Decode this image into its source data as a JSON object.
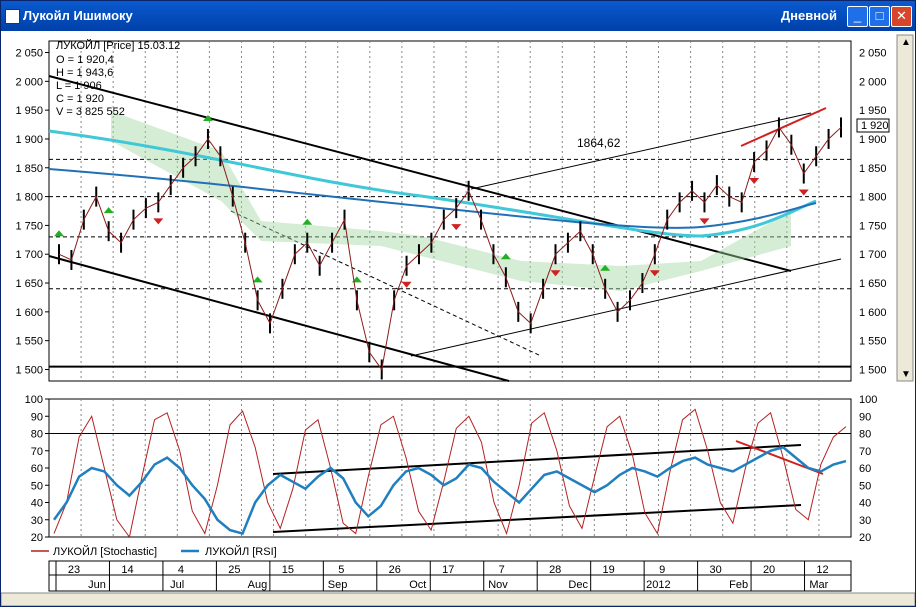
{
  "window": {
    "title": "Лукойл Ишимоку",
    "period": "Дневной"
  },
  "buttons": {
    "minimize": "_",
    "maximize": "□",
    "close": "✕"
  },
  "info": {
    "header": "ЛУКОЙЛ [Price] 15.03.12",
    "lines": [
      "O = 1 920,4",
      "H = 1 943,6",
      "L = 1 906",
      "C = 1 920",
      "V = 3 825 552"
    ]
  },
  "price_label": "1 920",
  "annotation": "1864,62",
  "legend": {
    "stochastic": "ЛУКОЙЛ [Stochastic]",
    "rsi": "ЛУКОЙЛ [RSI]"
  },
  "colors": {
    "stochastic": "#b22222",
    "rsi": "#1f7fbf",
    "annotation": "#d03030"
  },
  "chart_data": [
    {
      "type": "line",
      "title": "ЛУКОЙЛ [Price]",
      "ylim": [
        1480,
        2070
      ],
      "yticks": [
        "2 050",
        "2 000",
        "1 950",
        "1 900",
        "1 850",
        "1 800",
        "1 750",
        "1 700",
        "1 650",
        "1 600",
        "1 550",
        "1 500"
      ],
      "ytick_values": [
        2050,
        2000,
        1950,
        1900,
        1850,
        1800,
        1750,
        1700,
        1650,
        1600,
        1550,
        1500
      ],
      "hlines": [
        1864.62,
        1800,
        1730,
        1640,
        1505
      ],
      "grid": true,
      "series": [
        {
          "name": "ЛУКОЙЛ [Price]",
          "values": [
            1700,
            1690,
            1760,
            1800,
            1740,
            1720,
            1760,
            1780,
            1790,
            1820,
            1850,
            1870,
            1900,
            1870,
            1800,
            1720,
            1620,
            1580,
            1640,
            1700,
            1720,
            1680,
            1720,
            1760,
            1620,
            1530,
            1500,
            1620,
            1680,
            1700,
            1720,
            1760,
            1780,
            1810,
            1760,
            1700,
            1660,
            1600,
            1580,
            1640,
            1700,
            1720,
            1740,
            1700,
            1640,
            1600,
            1620,
            1650,
            1700,
            1760,
            1790,
            1810,
            1790,
            1820,
            1800,
            1790,
            1860,
            1880,
            1920,
            1890,
            1840,
            1870,
            1900,
            1920
          ]
        }
      ]
    },
    {
      "type": "line",
      "ylim": [
        20,
        100
      ],
      "yticks": [
        "100",
        "90",
        "80",
        "70",
        "60",
        "50",
        "40",
        "30",
        "20"
      ],
      "ytick_values": [
        100,
        90,
        80,
        70,
        60,
        50,
        40,
        30,
        20
      ],
      "hlines": [
        80,
        20
      ],
      "series": [
        {
          "name": "ЛУКОЙЛ [Stochastic]",
          "values": [
            22,
            40,
            78,
            90,
            60,
            30,
            20,
            55,
            88,
            92,
            70,
            35,
            22,
            50,
            85,
            93,
            72,
            40,
            25,
            48,
            82,
            88,
            60,
            28,
            22,
            55,
            85,
            90,
            66,
            35,
            24,
            52,
            83,
            90,
            75,
            40,
            22,
            50,
            86,
            92,
            70,
            38,
            25,
            55,
            84,
            90,
            68,
            34,
            22,
            58,
            88,
            94,
            70,
            40,
            28,
            60,
            86,
            92,
            66,
            36,
            30,
            62,
            78,
            84
          ]
        },
        {
          "name": "ЛУКОЙЛ [RSI]",
          "values": [
            30,
            40,
            55,
            60,
            58,
            50,
            44,
            52,
            62,
            66,
            60,
            50,
            42,
            30,
            24,
            22,
            40,
            50,
            56,
            52,
            48,
            55,
            60,
            54,
            40,
            32,
            38,
            50,
            58,
            60,
            56,
            50,
            54,
            62,
            60,
            52,
            46,
            40,
            48,
            56,
            58,
            54,
            50,
            46,
            50,
            56,
            60,
            58,
            55,
            60,
            64,
            66,
            62,
            60,
            58,
            62,
            66,
            70,
            72,
            66,
            60,
            58,
            62,
            64
          ]
        }
      ]
    }
  ],
  "xaxis": {
    "days": [
      "23",
      "14",
      "4",
      "25",
      "15",
      "5",
      "26",
      "17",
      "7",
      "28",
      "19",
      "9",
      "30",
      "20",
      "12"
    ],
    "months": [
      "Jun",
      "Jul",
      "Aug",
      "Sep",
      "Oct",
      "Nov",
      "Dec",
      "2012",
      "Feb",
      "Mar"
    ]
  }
}
